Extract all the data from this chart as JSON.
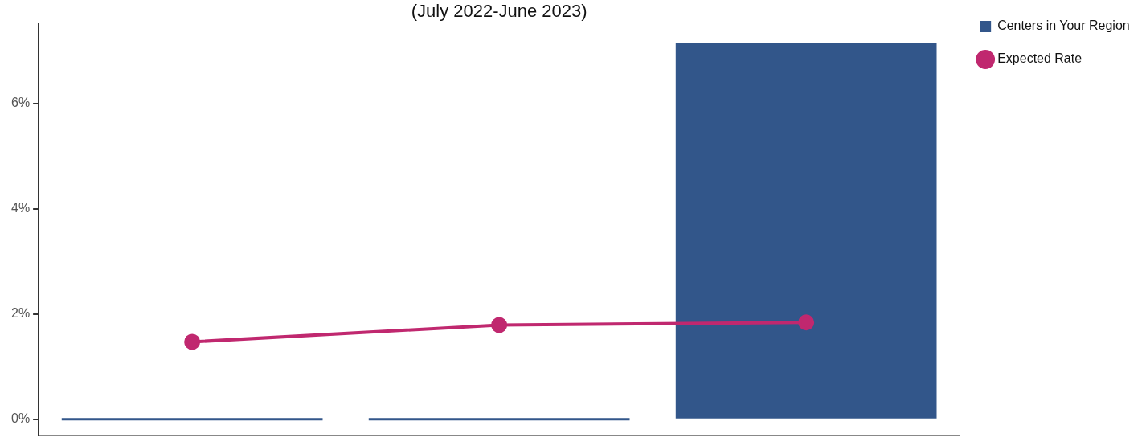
{
  "chart_data": {
    "type": "bar",
    "title": "(July 2022-June 2023)",
    "categories": [
      null,
      null,
      null
    ],
    "series": [
      {
        "name": "Centers in Your Region",
        "color": "#32568a",
        "values": [
          0,
          0,
          7.15
        ]
      },
      {
        "name": "Expected Rate",
        "type": "line",
        "color": "#c0286f",
        "values": [
          1.47,
          1.79,
          1.84
        ],
        "marker": "circle"
      }
    ],
    "ylim": [
      -0.3,
      7.5
    ],
    "yticks": [
      {
        "value": 0,
        "label": "0%"
      },
      {
        "value": 2,
        "label": "2%"
      },
      {
        "value": 4,
        "label": "4%"
      },
      {
        "value": 6,
        "label": "6%"
      }
    ],
    "grid": false,
    "legend": "top right"
  }
}
